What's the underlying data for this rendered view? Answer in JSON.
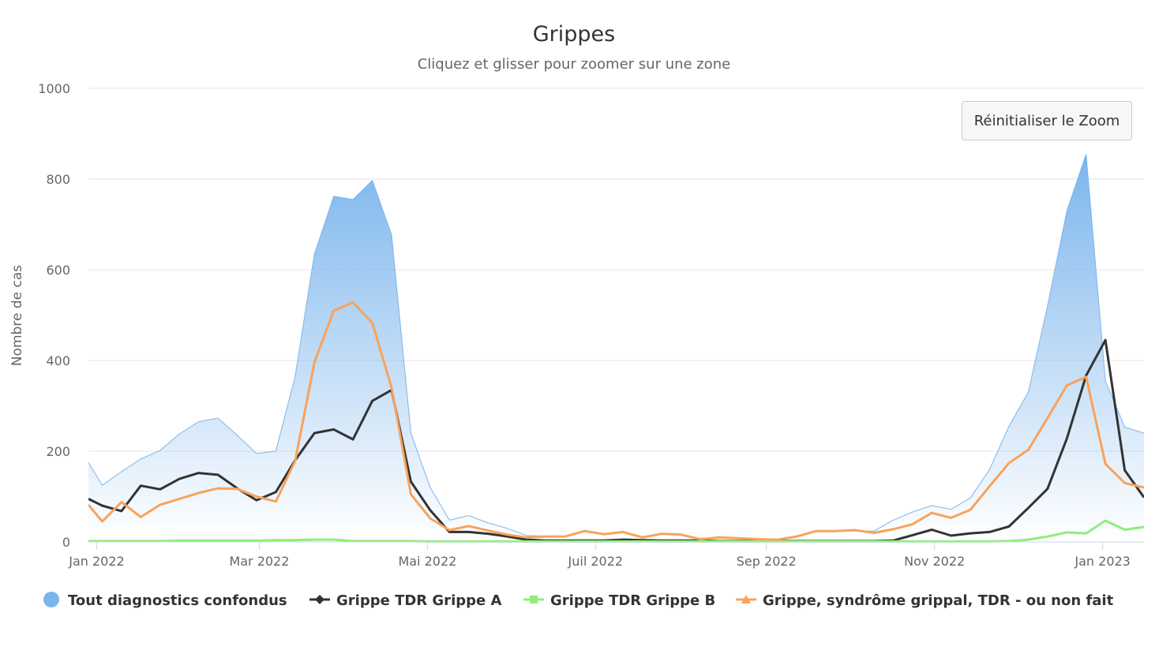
{
  "chart_data": {
    "type": "area",
    "title": "Grippes",
    "subtitle": "Cliquez et glisser pour zoomer sur une zone",
    "reset_zoom_label": "Réinitialiser le Zoom",
    "ylabel": "Nombre de cas",
    "xlabel": "",
    "ylim": [
      0,
      1000
    ],
    "y_ticks": [
      0,
      200,
      400,
      600,
      800,
      1000
    ],
    "x_ticks": [
      {
        "date": "2022-01-01",
        "label": "Jan 2022"
      },
      {
        "date": "2022-03-01",
        "label": "Mar 2022"
      },
      {
        "date": "2022-05-01",
        "label": "Mai 2022"
      },
      {
        "date": "2022-07-01",
        "label": "Juil 2022"
      },
      {
        "date": "2022-09-01",
        "label": "Sep 2022"
      },
      {
        "date": "2022-11-01",
        "label": "Nov 2022"
      },
      {
        "date": "2023-01-01",
        "label": "Jan 2023"
      }
    ],
    "xlim": [
      "2021-12-29",
      "2023-01-16"
    ],
    "grid": true,
    "legend_position": "bottom",
    "x": [
      "2021-12-29",
      "2022-01-03",
      "2022-01-10",
      "2022-01-17",
      "2022-01-24",
      "2022-01-31",
      "2022-02-07",
      "2022-02-14",
      "2022-02-21",
      "2022-02-28",
      "2022-03-07",
      "2022-03-14",
      "2022-03-21",
      "2022-03-28",
      "2022-04-04",
      "2022-04-11",
      "2022-04-18",
      "2022-04-25",
      "2022-05-02",
      "2022-05-09",
      "2022-05-16",
      "2022-05-23",
      "2022-05-30",
      "2022-06-06",
      "2022-06-13",
      "2022-06-20",
      "2022-06-27",
      "2022-07-04",
      "2022-07-11",
      "2022-07-18",
      "2022-07-25",
      "2022-08-01",
      "2022-08-08",
      "2022-08-15",
      "2022-08-22",
      "2022-08-29",
      "2022-09-05",
      "2022-09-12",
      "2022-09-19",
      "2022-09-26",
      "2022-10-03",
      "2022-10-10",
      "2022-10-17",
      "2022-10-24",
      "2022-10-31",
      "2022-11-07",
      "2022-11-14",
      "2022-11-21",
      "2022-11-28",
      "2022-12-05",
      "2022-12-12",
      "2022-12-19",
      "2022-12-26",
      "2023-01-02",
      "2023-01-09",
      "2023-01-16"
    ],
    "series": [
      {
        "name": "Tout diagnostics confondus",
        "type": "area",
        "color": "#7cb5ec",
        "marker": "circle",
        "values": [
          175,
          125,
          155,
          183,
          202,
          238,
          265,
          273,
          235,
          195,
          200,
          365,
          635,
          762,
          755,
          797,
          677,
          240,
          120,
          48,
          58,
          42,
          30,
          14,
          13,
          12,
          24,
          18,
          22,
          12,
          18,
          16,
          8,
          10,
          8,
          7,
          6,
          12,
          24,
          24,
          24,
          24,
          48,
          66,
          80,
          72,
          97,
          160,
          255,
          330,
          520,
          730,
          855,
          355,
          253,
          240
        ]
      },
      {
        "name": "Grippe TDR Grippe A",
        "type": "line",
        "color": "#333333",
        "marker": "diamond",
        "values": [
          95,
          80,
          68,
          124,
          116,
          139,
          152,
          148,
          118,
          92,
          110,
          180,
          240,
          248,
          226,
          311,
          335,
          133,
          70,
          22,
          22,
          18,
          12,
          5,
          3,
          3,
          3,
          3,
          5,
          4,
          3,
          3,
          3,
          2,
          2,
          2,
          2,
          2,
          2,
          2,
          2,
          2,
          3,
          15,
          27,
          14,
          19,
          22,
          34,
          75,
          117,
          228,
          367,
          445,
          158,
          98
        ]
      },
      {
        "name": "Grippe TDR Grippe B",
        "type": "line",
        "color": "#90ed7d",
        "marker": "square",
        "values": [
          2,
          2,
          2,
          2,
          2,
          3,
          3,
          3,
          3,
          3,
          4,
          4,
          5,
          5,
          2,
          2,
          2,
          2,
          1,
          1,
          1,
          1,
          1,
          1,
          1,
          1,
          1,
          1,
          1,
          1,
          1,
          1,
          1,
          1,
          1,
          1,
          1,
          1,
          1,
          1,
          1,
          1,
          1,
          1,
          1,
          1,
          1,
          1,
          2,
          5,
          12,
          21,
          19,
          47,
          27,
          33
        ]
      },
      {
        "name": "Grippe, syndrôme grippal, TDR - ou non fait",
        "type": "line",
        "color": "#f7a35c",
        "marker": "triangle",
        "values": [
          82,
          45,
          88,
          55,
          82,
          95,
          108,
          118,
          117,
          100,
          89,
          178,
          396,
          510,
          528,
          483,
          340,
          105,
          52,
          26,
          35,
          25,
          16,
          10,
          12,
          12,
          24,
          17,
          22,
          10,
          18,
          16,
          6,
          10,
          8,
          6,
          5,
          12,
          24,
          24,
          26,
          20,
          28,
          39,
          64,
          53,
          71,
          123,
          174,
          203,
          273,
          345,
          364,
          172,
          130,
          120
        ]
      }
    ]
  }
}
